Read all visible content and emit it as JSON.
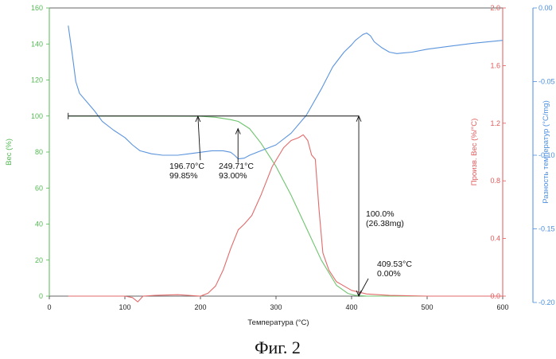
{
  "chart_data": {
    "type": "line",
    "caption": "Фиг. 2",
    "xlabel": "Температура (°C)",
    "xlim": [
      0,
      600
    ],
    "x_ticks": [
      "0",
      "100",
      "200",
      "300",
      "400",
      "500",
      "600"
    ],
    "axes": {
      "weight": {
        "label": "Вес (%)",
        "range": [
          0,
          160
        ],
        "ticks": [
          "0",
          "20",
          "40",
          "60",
          "80",
          "100",
          "120",
          "140",
          "160"
        ],
        "color": "#55b855"
      },
      "deriv": {
        "label": "Произв. Вес (%/°C)",
        "range": [
          0.0,
          2.0
        ],
        "ticks": [
          "0.0",
          "0.4",
          "0.8",
          "1.2",
          "1.6",
          "2.0"
        ],
        "color": "#e05a5a"
      },
      "temp_diff": {
        "label": "Разность температур (°C/mg)",
        "range": [
          -0.2,
          0.0
        ],
        "ticks": [
          "-0.20",
          "-0.15",
          "-0.10",
          "-0.05",
          "0.00"
        ],
        "color": "#4a8ee0"
      }
    },
    "series": [
      {
        "name": "Вес (%)",
        "axis": "weight",
        "color": "#6ec46e",
        "x": [
          25,
          100,
          150,
          200,
          220,
          240,
          250,
          265,
          280,
          300,
          320,
          340,
          360,
          380,
          395,
          405,
          420,
          450,
          500,
          600
        ],
        "y": [
          100,
          100,
          100,
          99.85,
          99.3,
          98,
          97,
          93,
          85,
          72,
          56,
          38,
          20,
          6,
          1.5,
          0.4,
          0,
          0,
          0,
          0
        ]
      },
      {
        "name": "Произв. Вес (%/°C)",
        "axis": "deriv",
        "color": "#e26a6a",
        "x": [
          25,
          100,
          110,
          117,
          124,
          140,
          170,
          200,
          210,
          220,
          230,
          240,
          250,
          258,
          268,
          280,
          295,
          310,
          320,
          330,
          336,
          342,
          347,
          352,
          357,
          362,
          370,
          380,
          390,
          400,
          420,
          450,
          500,
          600
        ],
        "y": [
          0.0,
          0.0,
          -0.01,
          -0.04,
          0.0,
          0.005,
          0.01,
          0.0,
          0.02,
          0.07,
          0.18,
          0.33,
          0.46,
          0.5,
          0.56,
          0.7,
          0.9,
          1.03,
          1.08,
          1.1,
          1.12,
          1.08,
          0.98,
          0.95,
          0.6,
          0.3,
          0.18,
          0.1,
          0.07,
          0.04,
          0.015,
          0.005,
          0.0,
          0.0
        ]
      },
      {
        "name": "Разность температур (°C/mg)",
        "axis": "temp_diff",
        "color": "#5b94dd",
        "x": [
          25,
          30,
          35,
          40,
          50,
          60,
          70,
          85,
          100,
          110,
          120,
          135,
          150,
          170,
          185,
          200,
          215,
          230,
          240,
          245,
          250,
          258,
          265,
          280,
          300,
          320,
          340,
          360,
          375,
          390,
          400,
          405,
          410,
          415,
          420,
          425,
          430,
          440,
          450,
          460,
          480,
          500,
          530,
          560,
          600
        ],
        "y": [
          -0.012,
          -0.03,
          -0.05,
          -0.058,
          -0.064,
          -0.07,
          -0.077,
          -0.083,
          -0.088,
          -0.093,
          -0.097,
          -0.099,
          -0.1,
          -0.1,
          -0.099,
          -0.098,
          -0.097,
          -0.097,
          -0.098,
          -0.1,
          -0.1025,
          -0.102,
          -0.1,
          -0.097,
          -0.093,
          -0.085,
          -0.073,
          -0.055,
          -0.04,
          -0.03,
          -0.025,
          -0.022,
          -0.02,
          -0.018,
          -0.017,
          -0.019,
          -0.023,
          -0.027,
          -0.03,
          -0.031,
          -0.03,
          -0.028,
          -0.026,
          -0.024,
          -0.022
        ]
      }
    ],
    "annotations": [
      {
        "x": 196.7,
        "y": 99.85,
        "lines": [
          "196.70°C",
          "99.85%"
        ]
      },
      {
        "x": 249.71,
        "y": 93.0,
        "lines": [
          "249.71°C",
          "93.00%"
        ]
      },
      {
        "x": 409.53,
        "y": 0.0,
        "lines": [
          "409.53°C",
          "0.00%"
        ]
      },
      {
        "x": 409.53,
        "y": 50,
        "lines": [
          "100.0%",
          "(26.38mg)"
        ]
      }
    ],
    "bracket": {
      "x_start": 25,
      "x_end": 409.53,
      "level": 100
    }
  }
}
